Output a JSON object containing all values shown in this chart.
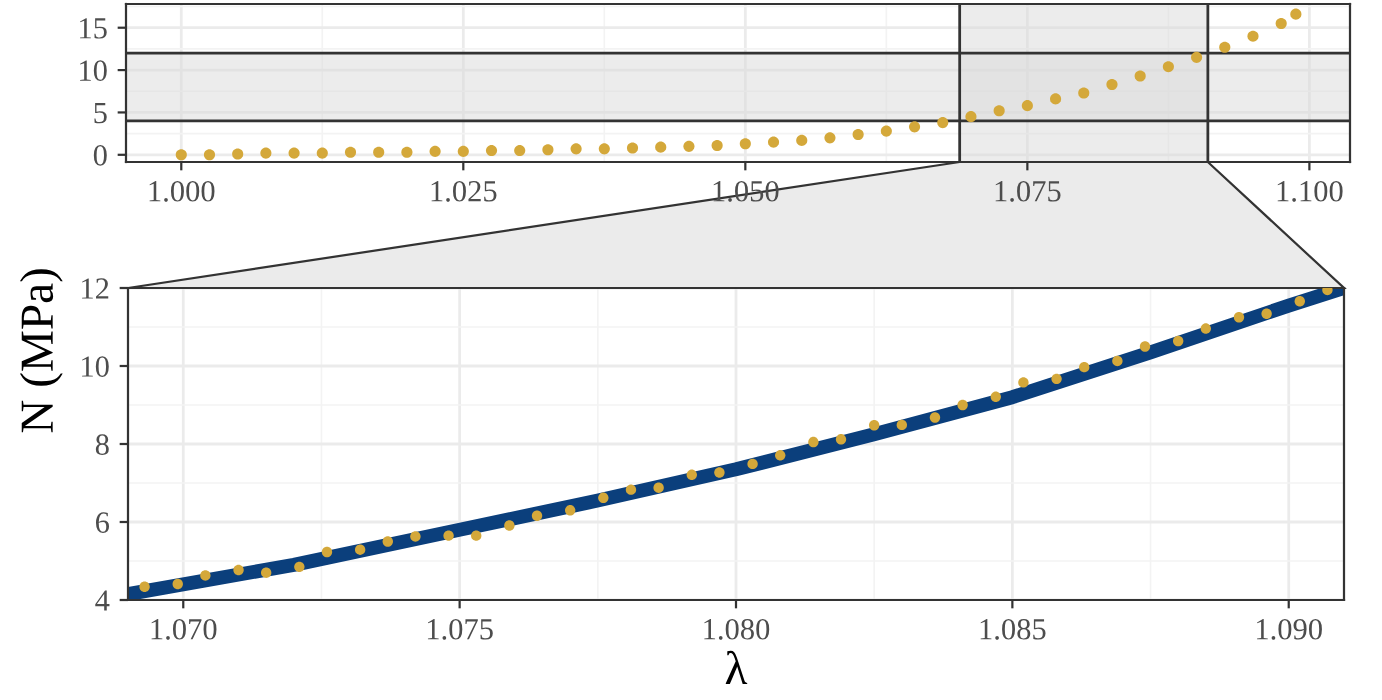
{
  "chart_data": [
    {
      "type": "scatter",
      "xlim": [
        0.9951,
        1.1036
      ],
      "ylim": [
        -0.85,
        17.8
      ],
      "xticks": [
        {
          "value": 1.0,
          "label": "1.000"
        },
        {
          "value": 1.025,
          "label": "1.025"
        },
        {
          "value": 1.05,
          "label": "1.050"
        },
        {
          "value": 1.075,
          "label": "1.075"
        },
        {
          "value": 1.1,
          "label": "1.100"
        }
      ],
      "yticks": [
        0,
        5,
        10,
        15
      ],
      "grid": true,
      "marker": "circle",
      "bands": [
        {
          "axis": "x",
          "from": 1.069,
          "to": 1.091,
          "color": "#d9d9d9"
        },
        {
          "axis": "y",
          "from": 4,
          "to": 12,
          "color": "#d9d9d9"
        }
      ],
      "series": [
        {
          "color": "#d4a83a",
          "x": [
            1.0,
            1.0025,
            1.005,
            1.0075,
            1.01,
            1.0125,
            1.015,
            1.0175,
            1.02,
            1.0225,
            1.025,
            1.0275,
            1.03,
            1.0325,
            1.035,
            1.0375,
            1.04,
            1.0425,
            1.045,
            1.0475,
            1.05,
            1.0525,
            1.055,
            1.0575,
            1.06,
            1.0625,
            1.065,
            1.0675,
            1.07,
            1.0725,
            1.075,
            1.0775,
            1.08,
            1.0825,
            1.085,
            1.0875,
            1.09,
            1.0925,
            1.095,
            1.0975,
            1.0988
          ],
          "values": [
            0.0,
            0.0,
            0.1,
            0.2,
            0.2,
            0.2,
            0.3,
            0.3,
            0.3,
            0.4,
            0.4,
            0.5,
            0.5,
            0.6,
            0.7,
            0.7,
            0.8,
            0.9,
            1.0,
            1.1,
            1.3,
            1.5,
            1.7,
            2.0,
            2.4,
            2.8,
            3.3,
            3.8,
            4.5,
            5.2,
            5.8,
            6.6,
            7.3,
            8.3,
            9.3,
            10.4,
            11.5,
            12.7,
            14.0,
            15.5,
            16.6
          ]
        }
      ]
    },
    {
      "type": "scatter",
      "xlabel": "λ",
      "ylabel": "N (MPa)",
      "xlim": [
        1.069,
        1.091
      ],
      "ylim": [
        4,
        12
      ],
      "xticks": [
        {
          "value": 1.07,
          "label": "1.070"
        },
        {
          "value": 1.075,
          "label": "1.075"
        },
        {
          "value": 1.08,
          "label": "1.080"
        },
        {
          "value": 1.085,
          "label": "1.085"
        },
        {
          "value": 1.09,
          "label": "1.090"
        }
      ],
      "yticks": [
        4,
        6,
        8,
        10,
        12
      ],
      "grid": true,
      "marker": "circle",
      "series": [
        {
          "type": "line",
          "marker": "none",
          "color": "#0b3f7c",
          "x": [
            1.069,
            1.072,
            1.075,
            1.0775,
            1.08,
            1.0825,
            1.085,
            1.0875,
            1.09,
            1.091
          ],
          "values": [
            4.15,
            4.9,
            5.8,
            6.55,
            7.35,
            8.25,
            9.2,
            10.35,
            11.55,
            12.0
          ]
        },
        {
          "color": "#d4a83a",
          "x": [
            1.0693,
            1.0699,
            1.0704,
            1.071,
            1.0715,
            1.0721,
            1.0726,
            1.0732,
            1.0737,
            1.0742,
            1.0748,
            1.0753,
            1.0759,
            1.0764,
            1.077,
            1.0776,
            1.0781,
            1.0786,
            1.0792,
            1.0797,
            1.0803,
            1.0808,
            1.0814,
            1.0819,
            1.0825,
            1.083,
            1.0836,
            1.0841,
            1.0847,
            1.0852,
            1.0858,
            1.0863,
            1.0869,
            1.0874,
            1.088,
            1.0885,
            1.0891,
            1.0896,
            1.0902,
            1.0907
          ],
          "values": [
            4.34,
            4.41,
            4.63,
            4.77,
            4.7,
            4.85,
            5.23,
            5.29,
            5.5,
            5.63,
            5.65,
            5.65,
            5.91,
            6.16,
            6.3,
            6.62,
            6.83,
            6.88,
            7.21,
            7.27,
            7.49,
            7.71,
            8.05,
            8.12,
            8.48,
            8.49,
            8.68,
            9.0,
            9.21,
            9.58,
            9.67,
            9.97,
            10.13,
            10.5,
            10.64,
            10.96,
            11.25,
            11.34,
            11.66,
            11.95
          ]
        }
      ]
    }
  ]
}
